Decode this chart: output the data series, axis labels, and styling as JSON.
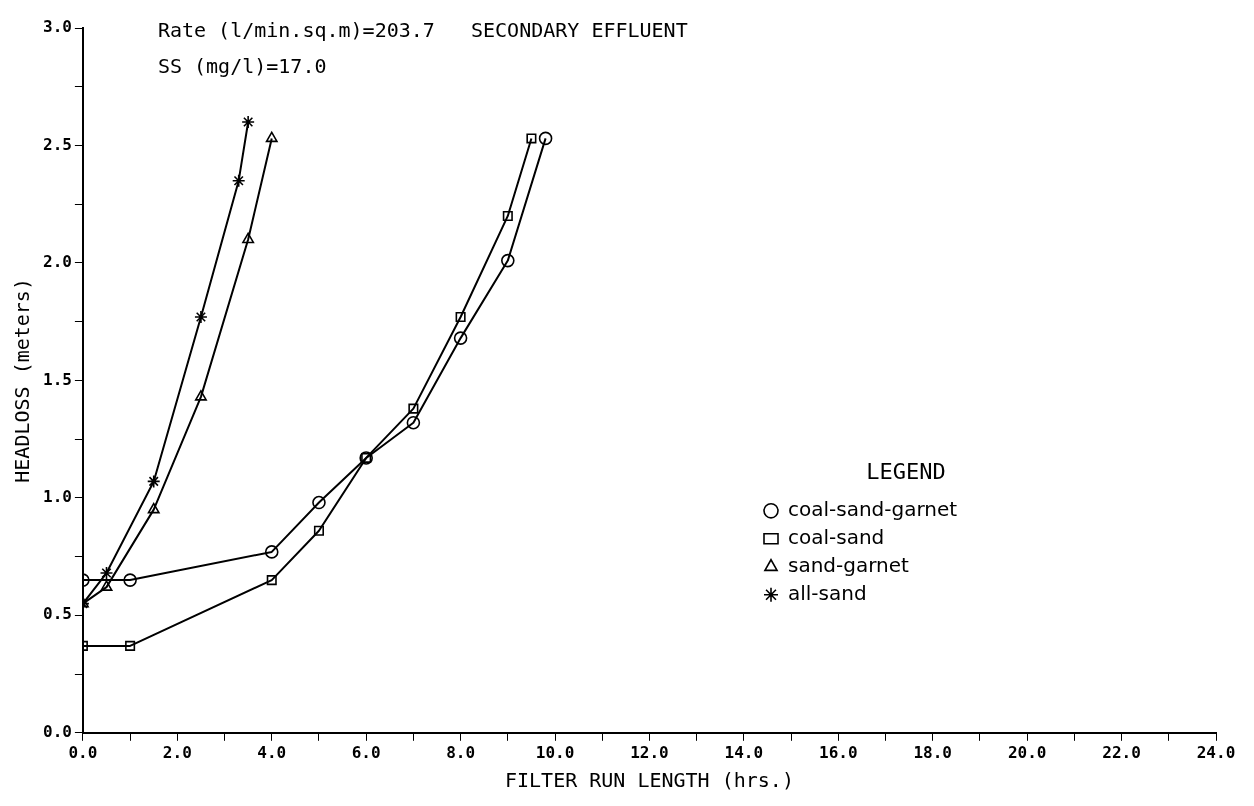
{
  "chart_data": {
    "type": "line",
    "xlabel": "FILTER RUN LENGTH (hrs.)",
    "ylabel": "HEADLOSS (meters)",
    "annotations": [
      "Rate (l/min.sq.m)=203.7   SECONDARY EFFLUENT",
      "SS (mg/l)=17.0"
    ],
    "legend_title": "LEGEND",
    "legend": "bottom right",
    "grid": false,
    "line_style": "solid",
    "xlim": [
      0,
      24
    ],
    "ylim": [
      0,
      3
    ],
    "xticks": [
      {
        "value": 0,
        "label": "0.0"
      },
      {
        "value": 1,
        "label": null
      },
      {
        "value": 2,
        "label": "2.0"
      },
      {
        "value": 3,
        "label": null
      },
      {
        "value": 4,
        "label": "4.0"
      },
      {
        "value": 5,
        "label": null
      },
      {
        "value": 6,
        "label": "6.0"
      },
      {
        "value": 7,
        "label": null
      },
      {
        "value": 8,
        "label": "8.0"
      },
      {
        "value": 9,
        "label": null
      },
      {
        "value": 10,
        "label": "10.0"
      },
      {
        "value": 11,
        "label": null
      },
      {
        "value": 12,
        "label": "12.0"
      },
      {
        "value": 13,
        "label": null
      },
      {
        "value": 14,
        "label": "14.0"
      },
      {
        "value": 15,
        "label": null
      },
      {
        "value": 16,
        "label": "16.0"
      },
      {
        "value": 17,
        "label": null
      },
      {
        "value": 18,
        "label": "18.0"
      },
      {
        "value": 19,
        "label": null
      },
      {
        "value": 20,
        "label": "20.0"
      },
      {
        "value": 21,
        "label": null
      },
      {
        "value": 22,
        "label": "22.0"
      },
      {
        "value": 23,
        "label": null
      },
      {
        "value": 24,
        "label": "24.0"
      }
    ],
    "yticks": [
      {
        "value": 0,
        "label": "0.0"
      },
      {
        "value": 0.25,
        "label": null
      },
      {
        "value": 0.5,
        "label": "0.5"
      },
      {
        "value": 0.75,
        "label": null
      },
      {
        "value": 1,
        "label": "1.0"
      },
      {
        "value": 1.25,
        "label": null
      },
      {
        "value": 1.5,
        "label": "1.5"
      },
      {
        "value": 1.75,
        "label": null
      },
      {
        "value": 2,
        "label": "2.0"
      },
      {
        "value": 2.25,
        "label": null
      },
      {
        "value": 2.5,
        "label": "2.5"
      },
      {
        "value": 2.75,
        "label": null
      },
      {
        "value": 3,
        "label": "3.0"
      }
    ],
    "series": [
      {
        "name": "coal-sand-garnet",
        "color": "#000000",
        "marker": "circle",
        "x": [
          0,
          1,
          4,
          5,
          6,
          7,
          8,
          9,
          9.8
        ],
        "values": [
          0.65,
          0.65,
          0.77,
          0.98,
          1.17,
          1.32,
          1.68,
          2.01,
          2.53
        ]
      },
      {
        "name": "coal-sand",
        "color": "#000000",
        "marker": "square",
        "x": [
          0,
          1,
          4,
          5,
          6,
          7,
          8,
          9,
          9.5
        ],
        "values": [
          0.37,
          0.37,
          0.65,
          0.86,
          1.17,
          1.38,
          1.77,
          2.2,
          2.53
        ]
      },
      {
        "name": "sand-garnet",
        "color": "#000000",
        "marker": "triangle",
        "x": [
          0,
          0.5,
          1.5,
          2.5,
          3.5,
          4
        ],
        "values": [
          0.55,
          0.62,
          0.95,
          1.43,
          2.1,
          2.53
        ]
      },
      {
        "name": "all-sand",
        "color": "#000000",
        "marker": "cross",
        "x": [
          0,
          0.5,
          1.5,
          2.5,
          3.3,
          3.5
        ],
        "values": [
          0.55,
          0.68,
          1.07,
          1.77,
          2.35,
          2.6
        ]
      }
    ]
  }
}
